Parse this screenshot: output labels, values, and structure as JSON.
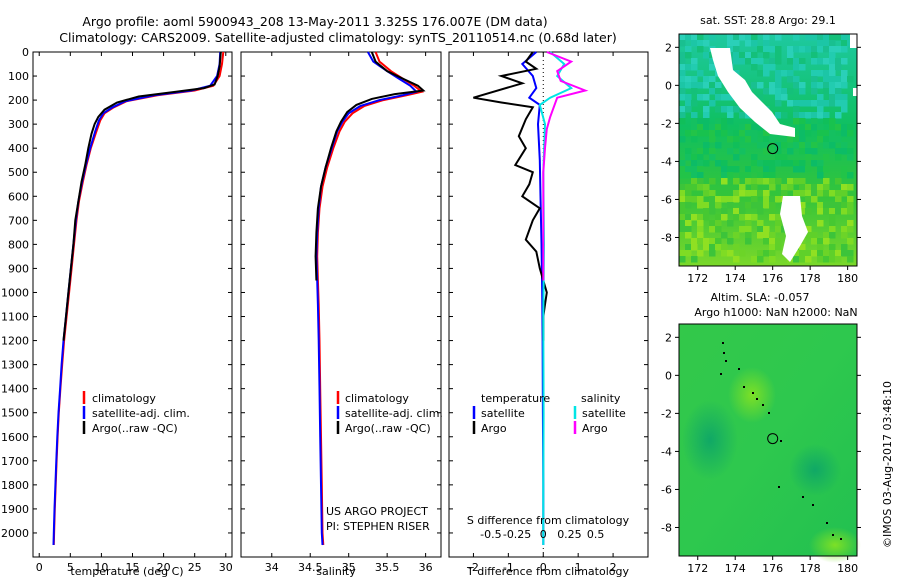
{
  "figure": {
    "title_line1": "Argo profile: aoml 5900943_208 13-May-2011 3.325S 176.007E (DM data)",
    "title_line2": "Climatology: CARS2009. Satellite-adjusted climatology: synTS_20110514.nc (0.68d later)",
    "credit": "US ARGO PROJECT",
    "pi": "PI: STEPHEN RISER",
    "watermark": "©IMOS 03-Aug-2017 03:48:10"
  },
  "colors": {
    "climatology": "#ff0000",
    "satellite": "#0000ff",
    "argo": "#000000",
    "sal_satellite": "#00e5e5",
    "sal_argo": "#ff00ff"
  },
  "chart_data": [
    {
      "id": "temperature",
      "type": "line",
      "xlabel": "temperature (deg C)",
      "ylabel": "",
      "xlim": [
        -1,
        31
      ],
      "ylim": [
        2100,
        0
      ],
      "xticks": [
        0,
        5,
        10,
        15,
        20,
        25,
        30
      ],
      "yticks": [
        0,
        100,
        200,
        300,
        400,
        500,
        600,
        700,
        800,
        900,
        1000,
        1100,
        1200,
        1300,
        1400,
        1500,
        1600,
        1700,
        1800,
        1900,
        2000
      ],
      "legend": [
        "climatology",
        "satellite-adj. clim.",
        "Argo(..raw -QC)"
      ],
      "series": [
        {
          "name": "climatology",
          "color": "#ff0000",
          "points": [
            [
              29.6,
              0
            ],
            [
              29.4,
              50
            ],
            [
              29.0,
              100
            ],
            [
              28.0,
              140
            ],
            [
              25,
              160
            ],
            [
              19,
              180
            ],
            [
              14,
              205
            ],
            [
              12,
              230
            ],
            [
              10.5,
              255
            ],
            [
              9.8,
              285
            ],
            [
              9.2,
              330
            ],
            [
              8.3,
              400
            ],
            [
              7.6,
              470
            ],
            [
              7.0,
              540
            ],
            [
              6.4,
              620
            ],
            [
              6.0,
              700
            ],
            [
              5.6,
              800
            ],
            [
              5.2,
              900
            ],
            [
              4.8,
              1000
            ],
            [
              4.4,
              1100
            ],
            [
              4.0,
              1200
            ],
            [
              3.7,
              1300
            ],
            [
              3.4,
              1400
            ],
            [
              3.15,
              1500
            ],
            [
              2.95,
              1600
            ],
            [
              2.8,
              1700
            ],
            [
              2.65,
              1800
            ],
            [
              2.5,
              1900
            ],
            [
              2.4,
              2000
            ],
            [
              2.35,
              2050
            ]
          ]
        },
        {
          "name": "satellite-adj. clim.",
          "color": "#0000ff",
          "points": [
            [
              29.1,
              0
            ],
            [
              29.0,
              50
            ],
            [
              28.6,
              100
            ],
            [
              27.5,
              140
            ],
            [
              24.5,
              160
            ],
            [
              18.5,
              180
            ],
            [
              13.8,
              205
            ],
            [
              11.8,
              230
            ],
            [
              10.3,
              255
            ],
            [
              9.6,
              285
            ],
            [
              9.0,
              330
            ],
            [
              8.2,
              400
            ],
            [
              7.5,
              470
            ],
            [
              6.9,
              540
            ],
            [
              6.3,
              620
            ],
            [
              5.9,
              700
            ],
            [
              5.5,
              800
            ],
            [
              5.1,
              900
            ],
            [
              4.7,
              1000
            ],
            [
              4.3,
              1100
            ],
            [
              3.9,
              1200
            ],
            [
              3.6,
              1300
            ],
            [
              3.35,
              1400
            ],
            [
              3.1,
              1500
            ],
            [
              2.9,
              1600
            ],
            [
              2.75,
              1700
            ],
            [
              2.6,
              1800
            ],
            [
              2.45,
              1900
            ],
            [
              2.35,
              2000
            ],
            [
              2.3,
              2050
            ]
          ]
        },
        {
          "name": "Argo(..raw -QC)",
          "color": "#000000",
          "points": [
            [
              29.2,
              0
            ],
            [
              29.0,
              60
            ],
            [
              28.7,
              100
            ],
            [
              28.2,
              135
            ],
            [
              26.5,
              150
            ],
            [
              22,
              165
            ],
            [
              16,
              185
            ],
            [
              12.5,
              210
            ],
            [
              10.5,
              240
            ],
            [
              9.5,
              270
            ],
            [
              8.9,
              300
            ],
            [
              8.4,
              340
            ],
            [
              7.9,
              400
            ],
            [
              7.4,
              470
            ],
            [
              6.8,
              540
            ],
            [
              6.3,
              620
            ],
            [
              5.8,
              700
            ],
            [
              5.5,
              800
            ],
            [
              5.1,
              900
            ],
            [
              4.7,
              1000
            ],
            [
              4.3,
              1100
            ],
            [
              3.9,
              1200
            ]
          ]
        }
      ]
    },
    {
      "id": "salinity",
      "type": "line",
      "xlabel": "salinity",
      "ylabel": "",
      "xlim": [
        33.6,
        36.2
      ],
      "ylim": [
        2100,
        0
      ],
      "xticks": [
        34,
        34.5,
        35,
        35.5,
        36
      ],
      "legend": [
        "climatology",
        "satellite-adj. clim.",
        "Argo(..raw -QC)"
      ],
      "series": [
        {
          "name": "climatology",
          "color": "#ff0000",
          "points": [
            [
              35.35,
              0
            ],
            [
              35.4,
              40
            ],
            [
              35.55,
              80
            ],
            [
              35.7,
              110
            ],
            [
              35.85,
              140
            ],
            [
              35.95,
              165
            ],
            [
              35.75,
              180
            ],
            [
              35.45,
              200
            ],
            [
              35.2,
              225
            ],
            [
              35.05,
              255
            ],
            [
              34.95,
              290
            ],
            [
              34.88,
              330
            ],
            [
              34.8,
              400
            ],
            [
              34.72,
              480
            ],
            [
              34.66,
              560
            ],
            [
              34.62,
              650
            ],
            [
              34.6,
              750
            ],
            [
              34.59,
              850
            ],
            [
              34.6,
              950
            ],
            [
              34.61,
              1050
            ],
            [
              34.62,
              1200
            ],
            [
              34.63,
              1400
            ],
            [
              34.64,
              1600
            ],
            [
              34.65,
              1800
            ],
            [
              34.66,
              2000
            ],
            [
              34.67,
              2050
            ]
          ]
        },
        {
          "name": "satellite-adj. clim.",
          "color": "#0000ff",
          "points": [
            [
              35.25,
              0
            ],
            [
              35.32,
              40
            ],
            [
              35.5,
              80
            ],
            [
              35.65,
              110
            ],
            [
              35.8,
              140
            ],
            [
              35.88,
              165
            ],
            [
              35.7,
              180
            ],
            [
              35.4,
              200
            ],
            [
              35.15,
              225
            ],
            [
              35.0,
              255
            ],
            [
              34.92,
              290
            ],
            [
              34.85,
              330
            ],
            [
              34.78,
              400
            ],
            [
              34.7,
              480
            ],
            [
              34.64,
              560
            ],
            [
              34.61,
              650
            ],
            [
              34.59,
              750
            ],
            [
              34.58,
              850
            ],
            [
              34.59,
              950
            ],
            [
              34.6,
              1050
            ],
            [
              34.61,
              1200
            ],
            [
              34.62,
              1400
            ],
            [
              34.63,
              1600
            ],
            [
              34.64,
              1800
            ],
            [
              34.65,
              2000
            ],
            [
              34.66,
              2050
            ]
          ]
        },
        {
          "name": "Argo(..raw -QC)",
          "color": "#000000",
          "points": [
            [
              35.3,
              0
            ],
            [
              35.35,
              40
            ],
            [
              35.5,
              80
            ],
            [
              35.7,
              110
            ],
            [
              35.9,
              140
            ],
            [
              35.97,
              160
            ],
            [
              35.6,
              175
            ],
            [
              35.3,
              195
            ],
            [
              35.1,
              220
            ],
            [
              34.98,
              250
            ],
            [
              34.9,
              290
            ],
            [
              34.84,
              330
            ],
            [
              34.77,
              400
            ],
            [
              34.7,
              480
            ],
            [
              34.64,
              560
            ],
            [
              34.6,
              650
            ],
            [
              34.58,
              750
            ],
            [
              34.57,
              850
            ],
            [
              34.58,
              950
            ]
          ]
        }
      ]
    },
    {
      "id": "difference",
      "type": "line",
      "xlabel": "T difference from climatology",
      "xlabel_top": "S difference from climatology",
      "ylabel": "",
      "xlim": [
        -2.7,
        3.0
      ],
      "ylim": [
        2100,
        0
      ],
      "xticks": [
        -2,
        -1,
        0,
        1,
        2
      ],
      "xticks_top": [
        "-0.5",
        "-0.25",
        "0",
        "0.25",
        "0.5"
      ],
      "legend_headers": [
        "temperature",
        "salinity"
      ],
      "legend": [
        "satellite",
        "Argo",
        "satellite",
        "Argo"
      ],
      "series": [
        {
          "name": "satellite",
          "quantity": "temperature",
          "color": "#0000ff",
          "points": [
            [
              -0.2,
              0
            ],
            [
              -0.6,
              50
            ],
            [
              -0.3,
              100
            ],
            [
              -0.2,
              150
            ],
            [
              -0.4,
              190
            ],
            [
              -0.1,
              220
            ],
            [
              -0.15,
              300
            ],
            [
              -0.1,
              450
            ],
            [
              -0.08,
              600
            ],
            [
              -0.05,
              800
            ],
            [
              -0.03,
              1000
            ],
            [
              -0.02,
              1200
            ],
            [
              -0.01,
              1500
            ],
            [
              0,
              1800
            ],
            [
              0,
              2050
            ]
          ]
        },
        {
          "name": "Argo",
          "quantity": "temperature",
          "color": "#000000",
          "points": [
            [
              -0.3,
              0
            ],
            [
              -0.5,
              40
            ],
            [
              -0.2,
              70
            ],
            [
              -1.2,
              100
            ],
            [
              -0.6,
              130
            ],
            [
              -2.0,
              190
            ],
            [
              -1.2,
              210
            ],
            [
              -0.3,
              230
            ],
            [
              -0.5,
              280
            ],
            [
              -0.7,
              350
            ],
            [
              -0.5,
              400
            ],
            [
              -0.8,
              470
            ],
            [
              -0.3,
              500
            ],
            [
              -0.4,
              550
            ],
            [
              -0.6,
              600
            ],
            [
              -0.1,
              650
            ],
            [
              -0.3,
              700
            ],
            [
              -0.5,
              780
            ],
            [
              -0.2,
              830
            ],
            [
              -0.1,
              900
            ],
            [
              0,
              950
            ],
            [
              0.1,
              1000
            ],
            [
              0.05,
              1050
            ],
            [
              0,
              1100
            ],
            [
              0,
              1200
            ]
          ]
        },
        {
          "name": "satellite",
          "quantity": "salinity",
          "color": "#00e5e5",
          "points": [
            [
              0.2,
              0
            ],
            [
              0.6,
              50
            ],
            [
              0.4,
              100
            ],
            [
              0.8,
              150
            ],
            [
              0.2,
              190
            ],
            [
              -0.1,
              220
            ],
            [
              0.05,
              300
            ],
            [
              0,
              500
            ],
            [
              0.02,
              800
            ],
            [
              0,
              1100
            ],
            [
              0.01,
              1500
            ],
            [
              0,
              1800
            ],
            [
              0,
              2050
            ]
          ]
        },
        {
          "name": "Argo",
          "quantity": "salinity",
          "color": "#ff00ff",
          "points": [
            [
              0.1,
              0
            ],
            [
              0.8,
              40
            ],
            [
              0.4,
              80
            ],
            [
              0.5,
              120
            ],
            [
              1.2,
              160
            ],
            [
              0.4,
              190
            ],
            [
              0.3,
              230
            ],
            [
              0.2,
              270
            ],
            [
              0.1,
              320
            ],
            [
              0.05,
              400
            ],
            [
              0,
              500
            ],
            [
              0,
              700
            ],
            [
              0,
              900
            ],
            [
              0,
              950
            ]
          ]
        }
      ]
    },
    {
      "id": "sst-map",
      "type": "heatmap",
      "title": "sat. SST: 28.8  Argo: 29.1",
      "xticks": [
        172,
        174,
        176,
        178,
        180
      ],
      "yticks": [
        2,
        0,
        -2,
        -4,
        -6,
        -8
      ],
      "xlim": [
        171,
        180.5
      ],
      "ylim": [
        -9.5,
        2.7
      ],
      "marker": [
        176,
        -3.325
      ]
    },
    {
      "id": "sla-map",
      "type": "heatmap",
      "title_line1": "Altim. SLA: -0.057",
      "title_line2": "Argo h1000: NaN h2000: NaN",
      "xticks": [
        172,
        174,
        176,
        178,
        180
      ],
      "yticks": [
        2,
        0,
        -2,
        -4,
        -6,
        -8
      ],
      "xlim": [
        171,
        180.5
      ],
      "ylim": [
        -9.5,
        2.7
      ],
      "marker": [
        176,
        -3.325
      ]
    }
  ]
}
